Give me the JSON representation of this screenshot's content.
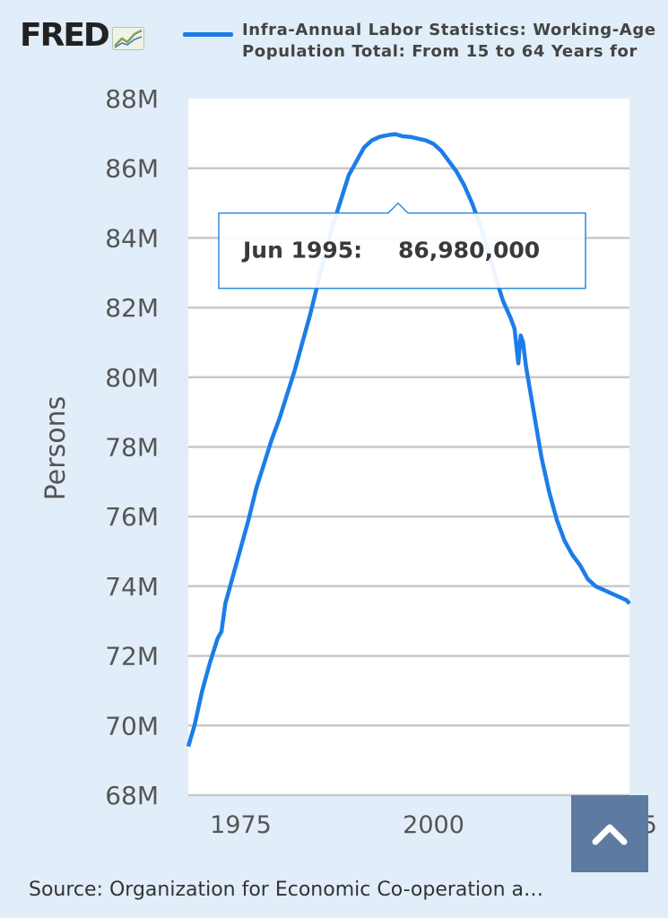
{
  "header": {
    "logo_text": "FRED",
    "logo_icon": "trend-chart-icon",
    "legend_label": "Infra-Annual Labor Statistics: Working-Age\nPopulation Total: From 15 to 64 Years for"
  },
  "chart_data": {
    "type": "line",
    "ylabel": "Persons",
    "xlabel": "",
    "ylim": [
      68000000,
      88000000
    ],
    "xlim": [
      1968.2,
      2025.4
    ],
    "y_ticks": [
      68000000,
      70000000,
      72000000,
      74000000,
      76000000,
      78000000,
      80000000,
      82000000,
      84000000,
      86000000,
      88000000
    ],
    "y_tick_labels": [
      "68M",
      "70M",
      "72M",
      "74M",
      "76M",
      "78M",
      "80M",
      "82M",
      "84M",
      "86M",
      "88M"
    ],
    "x_ticks": [
      1975,
      2000,
      2025
    ],
    "x_tick_labels": [
      "1975",
      "2000",
      "2025"
    ],
    "grid": true,
    "series": [
      {
        "color": "#1d7de8",
        "x": [
          1968.2,
          1969,
          1970,
          1971,
          1972,
          1972.5,
          1973,
          1974,
          1975,
          1976,
          1977,
          1978,
          1979,
          1980,
          1981,
          1982,
          1983,
          1984,
          1985,
          1986,
          1987,
          1988,
          1989,
          1990,
          1991,
          1992,
          1993,
          1994,
          1995,
          1996,
          1997,
          1998,
          1999,
          2000,
          2001,
          2002,
          2003,
          2004,
          2005,
          2006,
          2007,
          2008,
          2009,
          2010,
          2010.5,
          2011,
          2011.3,
          2011.6,
          2012,
          2013,
          2014,
          2015,
          2016,
          2017,
          2018,
          2019,
          2020,
          2021,
          2022,
          2023,
          2024,
          2025,
          2025.4
        ],
        "values": [
          69400000,
          70000000,
          71000000,
          71800000,
          72500000,
          72700000,
          73500000,
          74300000,
          75100000,
          75900000,
          76800000,
          77500000,
          78200000,
          78800000,
          79500000,
          80200000,
          81000000,
          81800000,
          82700000,
          83600000,
          84400000,
          85100000,
          85800000,
          86200000,
          86600000,
          86800000,
          86900000,
          86950000,
          86980000,
          86920000,
          86900000,
          86850000,
          86800000,
          86700000,
          86500000,
          86200000,
          85900000,
          85500000,
          85000000,
          84400000,
          83700000,
          82900000,
          82200000,
          81700000,
          81400000,
          80400000,
          81200000,
          81000000,
          80300000,
          79000000,
          77700000,
          76700000,
          75900000,
          75300000,
          74900000,
          74600000,
          74200000,
          74000000,
          73900000,
          73800000,
          73700000,
          73600000,
          73500000
        ]
      }
    ],
    "tooltip": {
      "date": "Jun 1995:",
      "value": "86,980,000",
      "x": 1995.4,
      "y": 86980000
    }
  },
  "footer": {
    "source": "Source: Organization for Economic Co-operation a…"
  },
  "controls": {
    "scroll_top_icon": "chevron-up-icon"
  }
}
